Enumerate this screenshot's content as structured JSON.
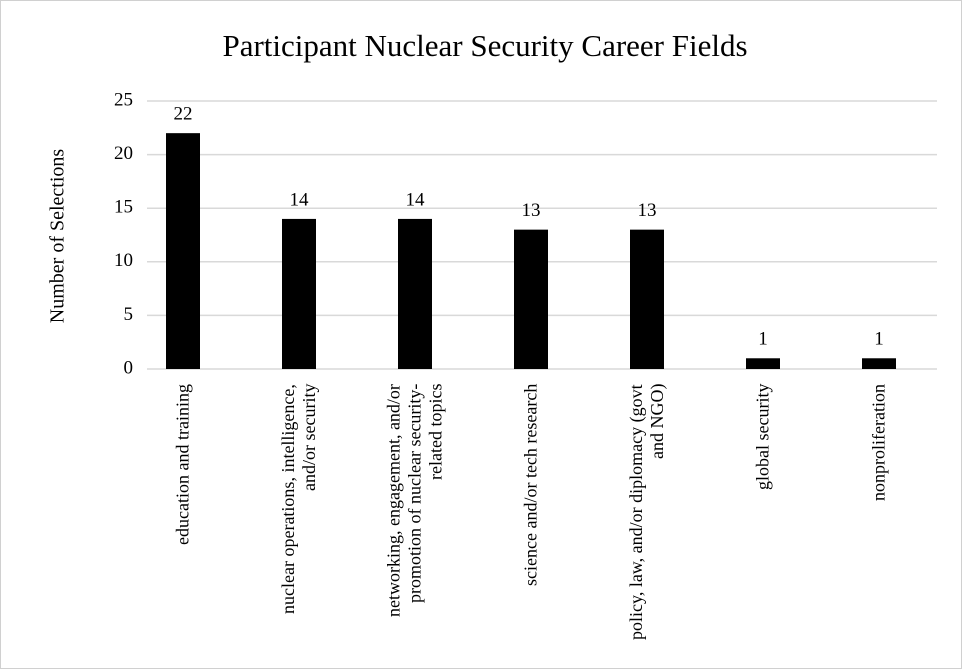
{
  "chart_data": {
    "type": "bar",
    "title": "Participant Nuclear Security Career Fields",
    "y_label": "Number of Selections",
    "categories": [
      "education and training",
      "nuclear operations, intelligence, and/or security",
      "networking, engagement, and/or promotion of nuclear security-related topics",
      "science and/or tech research",
      "policy, law, and/or diplomacy (govt and NGO)",
      "global security",
      "nonproliferation"
    ],
    "values": [
      22,
      14,
      14,
      13,
      13,
      1,
      1
    ],
    "color": "#000000",
    "ylim": [
      0,
      25
    ],
    "yticks": [
      0,
      5,
      10,
      15,
      20,
      25
    ],
    "grid": true,
    "data_labels": true
  }
}
